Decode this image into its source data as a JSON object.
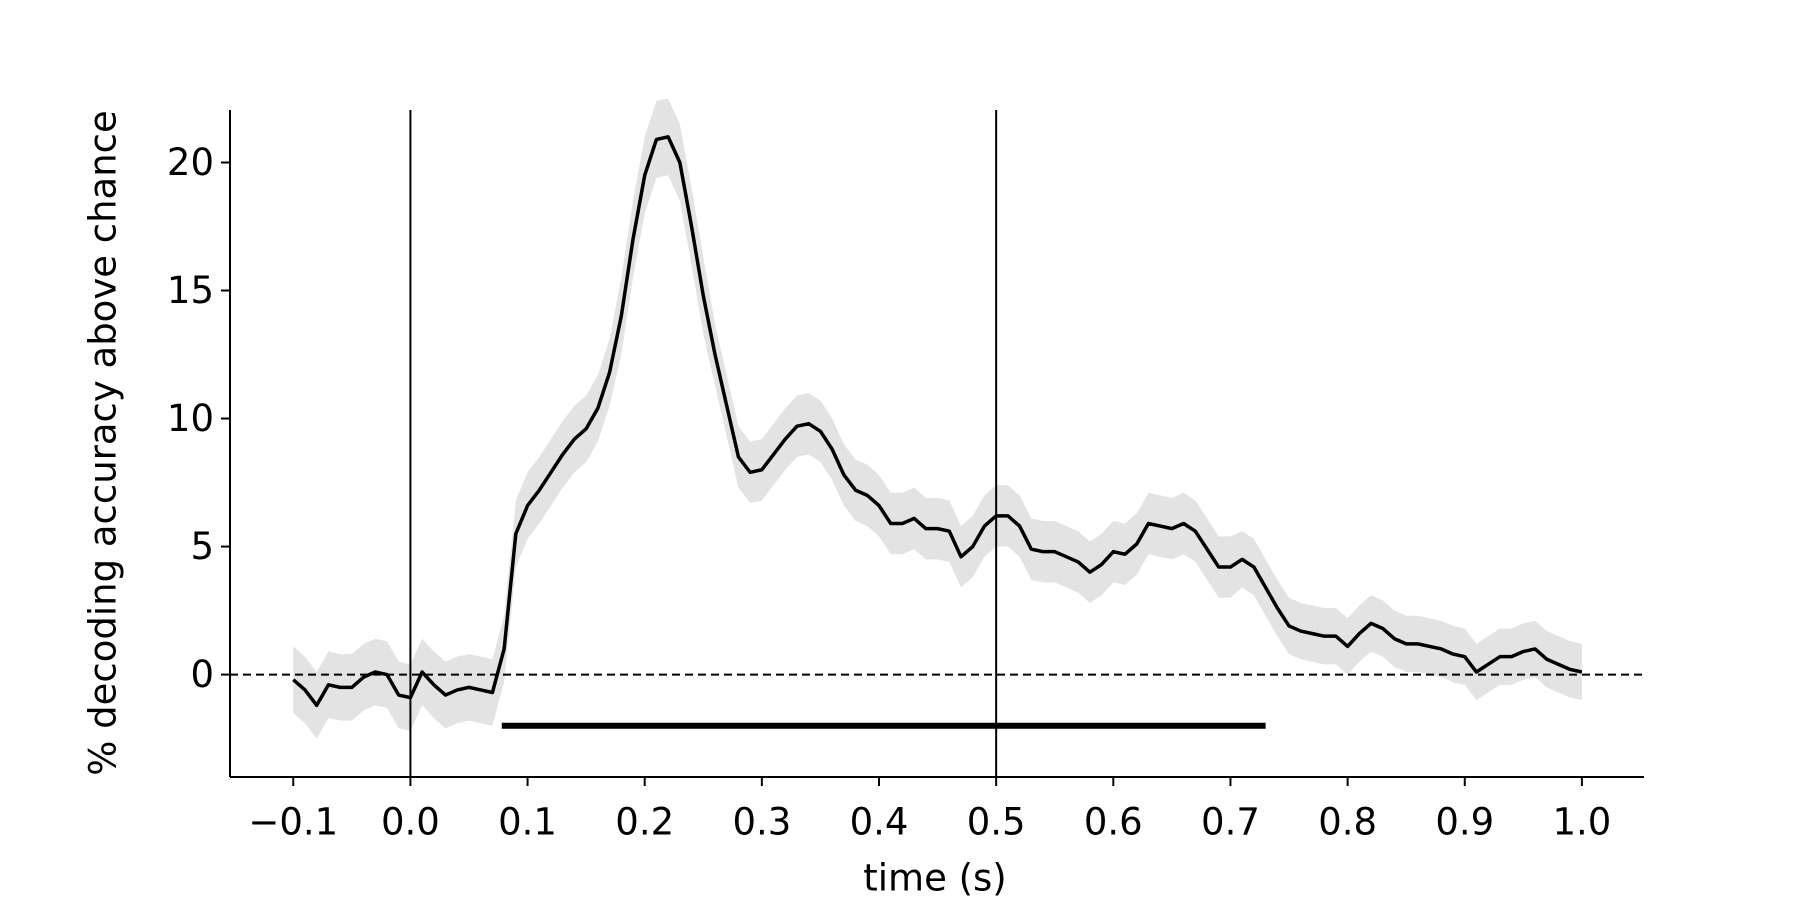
{
  "chart_data": {
    "type": "line",
    "xlabel": "time (s)",
    "ylabel": "% decoding accuracy above chance",
    "x": [
      -0.1,
      -0.09,
      -0.08,
      -0.07,
      -0.06,
      -0.05,
      -0.04,
      -0.03,
      -0.02,
      -0.01,
      0.0,
      0.01,
      0.02,
      0.03,
      0.04,
      0.05,
      0.06,
      0.07,
      0.08,
      0.09,
      0.1,
      0.11,
      0.12,
      0.13,
      0.14,
      0.15,
      0.16,
      0.17,
      0.18,
      0.19,
      0.2,
      0.21,
      0.22,
      0.23,
      0.24,
      0.25,
      0.26,
      0.27,
      0.28,
      0.29,
      0.3,
      0.31,
      0.32,
      0.33,
      0.34,
      0.35,
      0.36,
      0.37,
      0.38,
      0.39,
      0.4,
      0.41,
      0.42,
      0.43,
      0.44,
      0.45,
      0.46,
      0.47,
      0.48,
      0.49,
      0.5,
      0.51,
      0.52,
      0.53,
      0.54,
      0.55,
      0.56,
      0.57,
      0.58,
      0.59,
      0.6,
      0.61,
      0.62,
      0.63,
      0.64,
      0.65,
      0.66,
      0.67,
      0.68,
      0.69,
      0.7,
      0.71,
      0.72,
      0.73,
      0.74,
      0.75,
      0.76,
      0.77,
      0.78,
      0.79,
      0.8,
      0.81,
      0.82,
      0.83,
      0.84,
      0.85,
      0.86,
      0.87,
      0.88,
      0.89,
      0.9,
      0.91,
      0.92,
      0.93,
      0.94,
      0.95,
      0.96,
      0.97,
      0.98,
      0.99,
      1.0
    ],
    "values": [
      -0.2,
      -0.6,
      -1.2,
      -0.4,
      -0.5,
      -0.5,
      -0.1,
      0.1,
      0.0,
      -0.8,
      -0.9,
      0.1,
      -0.4,
      -0.8,
      -0.6,
      -0.5,
      -0.6,
      -0.7,
      1.0,
      5.5,
      6.6,
      7.2,
      7.9,
      8.6,
      9.2,
      9.6,
      10.4,
      11.8,
      14.0,
      17.0,
      19.5,
      20.9,
      21.0,
      20.0,
      17.5,
      14.8,
      12.5,
      10.5,
      8.5,
      7.9,
      8.0,
      8.6,
      9.2,
      9.7,
      9.8,
      9.5,
      8.8,
      7.8,
      7.2,
      7.0,
      6.6,
      5.9,
      5.9,
      6.1,
      5.7,
      5.7,
      5.6,
      4.6,
      5.0,
      5.8,
      6.2,
      6.2,
      5.8,
      4.9,
      4.8,
      4.8,
      4.6,
      4.4,
      4.0,
      4.3,
      4.8,
      4.7,
      5.1,
      5.9,
      5.8,
      5.7,
      5.9,
      5.6,
      4.9,
      4.2,
      4.2,
      4.5,
      4.2,
      3.4,
      2.6,
      1.9,
      1.7,
      1.6,
      1.5,
      1.5,
      1.1,
      1.6,
      2.0,
      1.8,
      1.4,
      1.2,
      1.2,
      1.1,
      1.0,
      0.8,
      0.7,
      0.1,
      0.4,
      0.7,
      0.7,
      0.9,
      1.0,
      0.6,
      0.4,
      0.2,
      0.1
    ],
    "error": [
      1.3,
      1.3,
      1.3,
      1.3,
      1.3,
      1.3,
      1.3,
      1.3,
      1.3,
      1.3,
      1.3,
      1.3,
      1.3,
      1.3,
      1.3,
      1.3,
      1.3,
      1.3,
      1.3,
      1.3,
      1.3,
      1.3,
      1.3,
      1.3,
      1.3,
      1.3,
      1.3,
      1.3,
      1.5,
      1.5,
      1.5,
      1.5,
      1.5,
      1.5,
      1.5,
      1.5,
      1.2,
      1.2,
      1.2,
      1.2,
      1.2,
      1.2,
      1.2,
      1.2,
      1.2,
      1.2,
      1.2,
      1.2,
      1.2,
      1.2,
      1.2,
      1.2,
      1.2,
      1.2,
      1.2,
      1.2,
      1.2,
      1.2,
      1.2,
      1.2,
      1.2,
      1.2,
      1.2,
      1.2,
      1.2,
      1.2,
      1.2,
      1.2,
      1.2,
      1.2,
      1.2,
      1.2,
      1.2,
      1.2,
      1.2,
      1.2,
      1.2,
      1.2,
      1.2,
      1.2,
      1.2,
      1.1,
      1.1,
      1.1,
      1.1,
      1.1,
      1.1,
      1.1,
      1.1,
      1.1,
      1.1,
      1.1,
      1.1,
      1.1,
      1.1,
      1.1,
      1.1,
      1.1,
      1.1,
      1.1,
      1.1,
      1.1,
      1.1,
      1.1,
      1.1,
      1.1,
      1.1,
      1.1,
      1.1,
      1.1,
      1.1
    ],
    "color": "#000000",
    "band_color": "#e3e3e3",
    "significance": {
      "x": [
        0.078,
        0.73
      ],
      "y": -2
    },
    "vlines": [
      0,
      0.5
    ],
    "hline": 0,
    "xlim": [
      -0.154,
      1.053
    ],
    "ylim": [
      -4,
      22.05
    ],
    "xticks": [
      {
        "value": -0.1,
        "label": "−0.1"
      },
      {
        "value": 0,
        "label": "0.0"
      },
      0.1,
      0.2,
      0.3,
      0.4,
      0.5,
      0.6,
      0.7,
      0.8,
      0.9,
      {
        "value": 1,
        "label": "1.0"
      }
    ],
    "yticks": [
      0,
      5,
      10,
      15,
      20
    ]
  }
}
